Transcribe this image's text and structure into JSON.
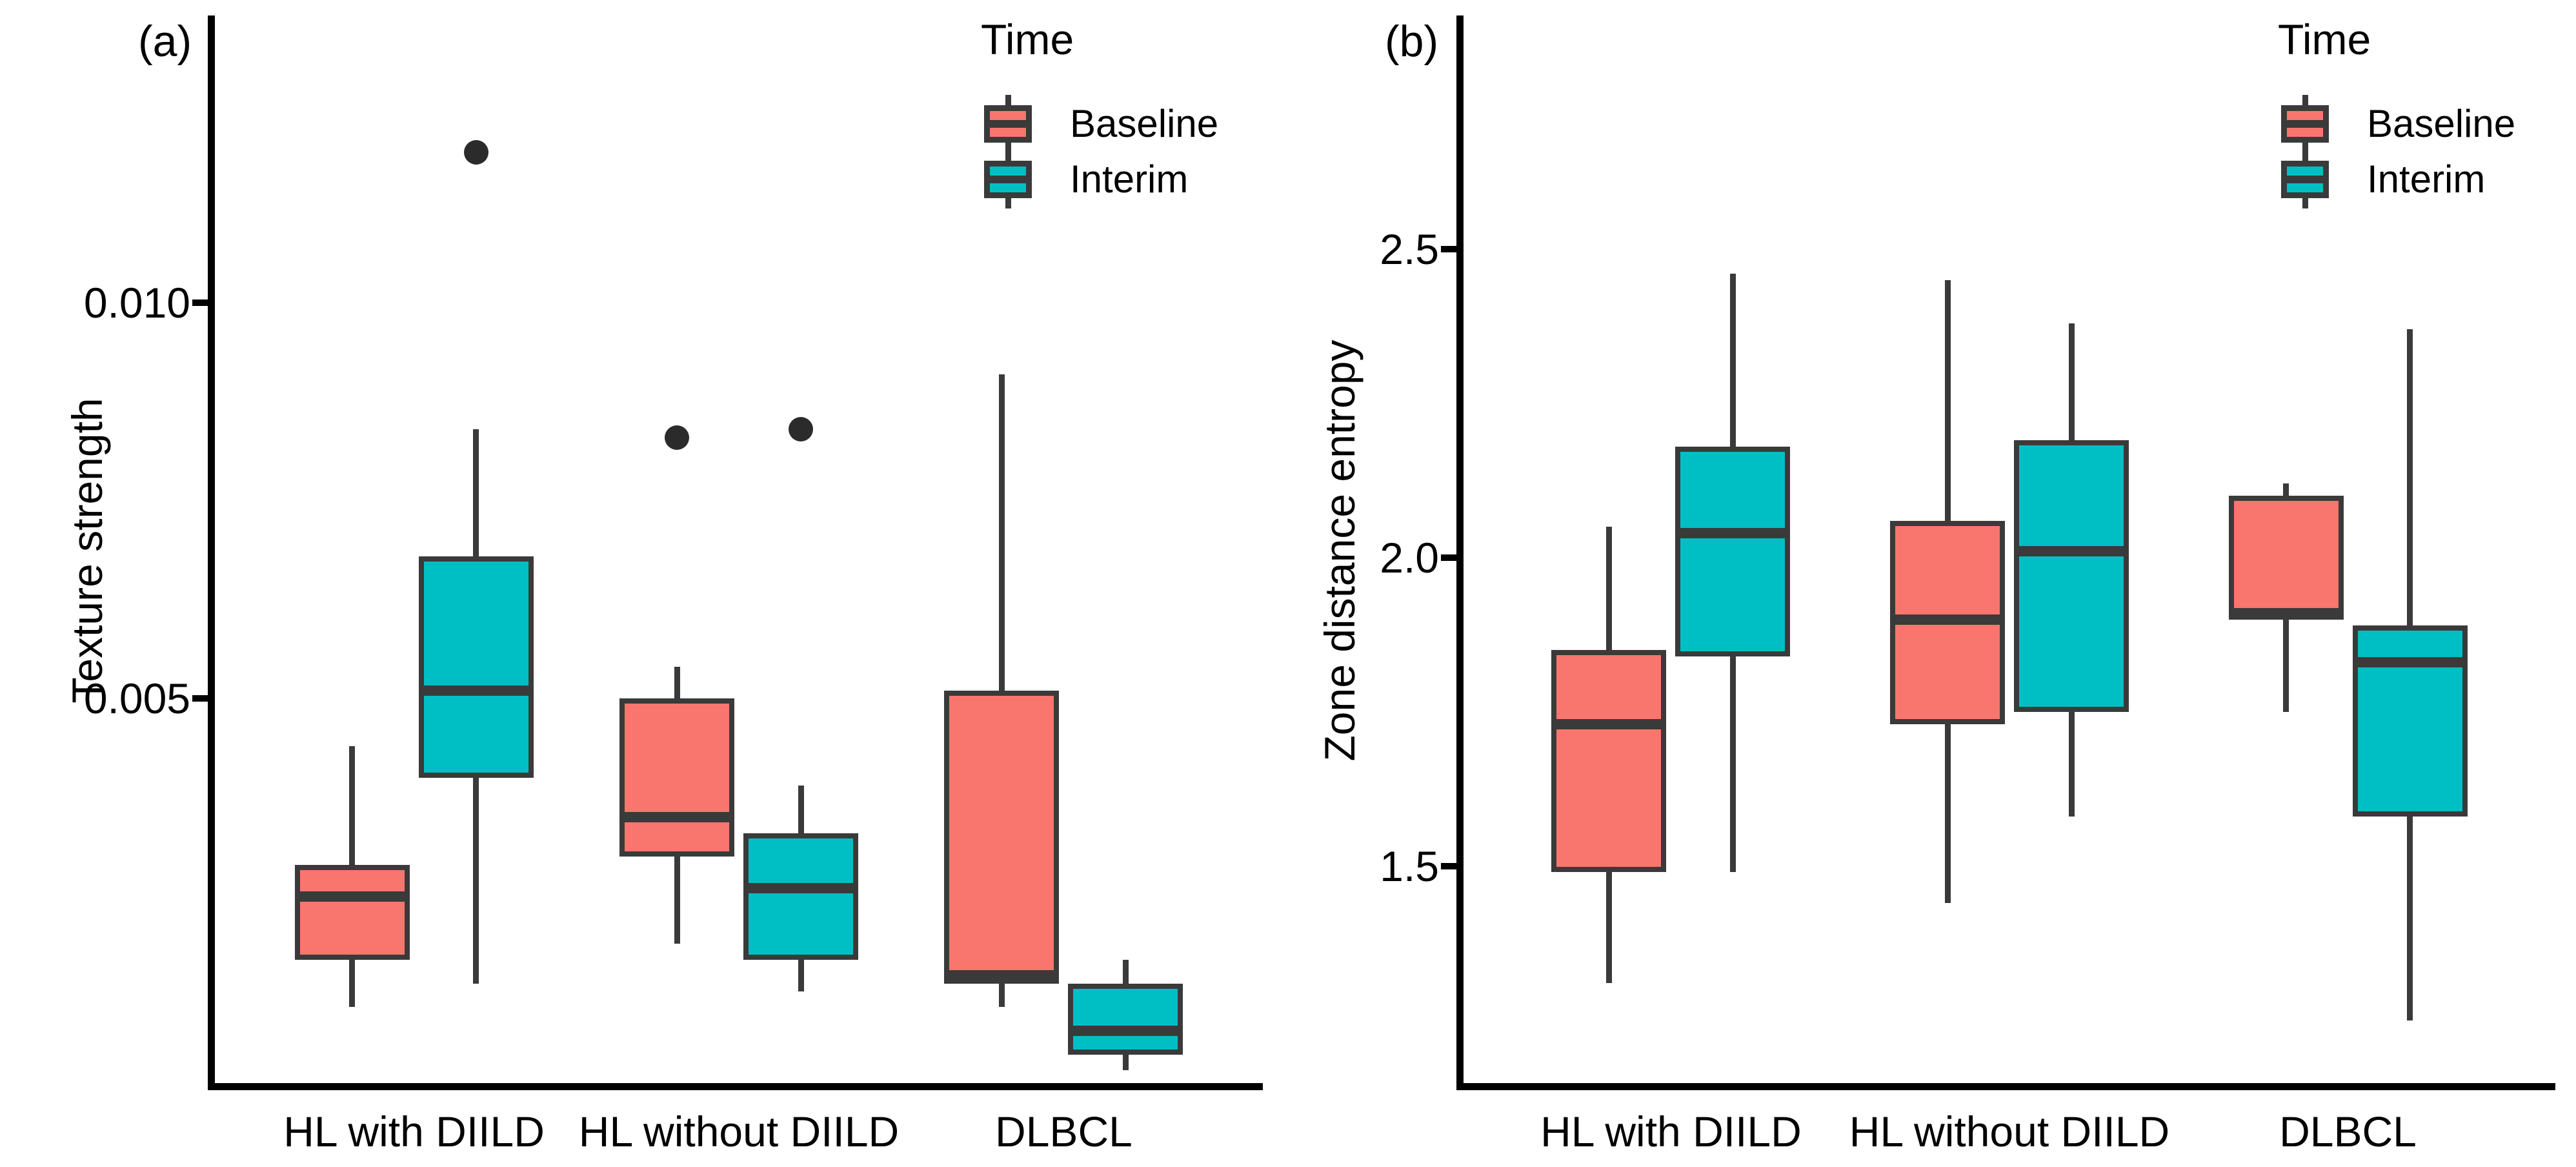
{
  "figure": {
    "background": "#FFFFFF",
    "text_color": "#000000",
    "box_border_color": "#3A3A3A",
    "outlier_color": "#2B2B2B"
  },
  "chart_data": [
    {
      "type": "boxplot",
      "panel_label": "(a)",
      "ylabel": "Texture strength",
      "xlabel": "",
      "categories": [
        "HL with DIILD",
        "HL without DIILD",
        "DLBCL"
      ],
      "yticks": [
        0.005,
        0.01
      ],
      "ytick_labels": [
        "0.005",
        "0.010"
      ],
      "ylim": [
        0.00014,
        0.0136
      ],
      "grid": false,
      "legend": {
        "title": "Time",
        "position": "top-right",
        "entries": [
          "Baseline",
          "Interim"
        ]
      },
      "series": [
        {
          "name": "Baseline",
          "fill": "#F8766D",
          "boxes": [
            {
              "category": "HL with DIILD",
              "whisker_low": 0.0011,
              "q1": 0.0017,
              "median": 0.0025,
              "q3": 0.0029,
              "whisker_high": 0.0044,
              "outliers": []
            },
            {
              "category": "HL without DIILD",
              "whisker_low": 0.0019,
              "q1": 0.003,
              "median": 0.0035,
              "q3": 0.005,
              "whisker_high": 0.0054,
              "outliers": [
                0.0083
              ]
            },
            {
              "category": "DLBCL",
              "whisker_low": 0.0011,
              "q1": 0.0014,
              "median": 0.0015,
              "q3": 0.0051,
              "whisker_high": 0.0091,
              "outliers": []
            }
          ]
        },
        {
          "name": "Interim",
          "fill": "#00BFC4",
          "boxes": [
            {
              "category": "HL with DIILD",
              "whisker_low": 0.0014,
              "q1": 0.004,
              "median": 0.0051,
              "q3": 0.0068,
              "whisker_high": 0.0084,
              "outliers": [
                0.0119
              ]
            },
            {
              "category": "HL without DIILD",
              "whisker_low": 0.0013,
              "q1": 0.0017,
              "median": 0.0026,
              "q3": 0.0033,
              "whisker_high": 0.0039,
              "outliers": [
                0.0084
              ]
            },
            {
              "category": "DLBCL",
              "whisker_low": 0.0003,
              "q1": 0.0005,
              "median": 0.0008,
              "q3": 0.0014,
              "whisker_high": 0.0017,
              "outliers": []
            }
          ]
        }
      ]
    },
    {
      "type": "boxplot",
      "panel_label": "(b)",
      "ylabel": "Zone distance entropy",
      "xlabel": "",
      "categories": [
        "HL with DIILD",
        "HL without DIILD",
        "DLBCL"
      ],
      "yticks": [
        1.5,
        2.0,
        2.5
      ],
      "ytick_labels": [
        "1.5",
        "2.0",
        "2.5"
      ],
      "ylim": [
        1.148,
        2.875
      ],
      "grid": false,
      "legend": {
        "title": "Time",
        "position": "top-right",
        "entries": [
          "Baseline",
          "Interim"
        ]
      },
      "series": [
        {
          "name": "Baseline",
          "fill": "#F8766D",
          "boxes": [
            {
              "category": "HL with DIILD",
              "whisker_low": 1.31,
              "q1": 1.49,
              "median": 1.73,
              "q3": 1.85,
              "whisker_high": 2.05,
              "outliers": []
            },
            {
              "category": "HL without DIILD",
              "whisker_low": 1.44,
              "q1": 1.73,
              "median": 1.9,
              "q3": 2.06,
              "whisker_high": 2.45,
              "outliers": []
            },
            {
              "category": "DLBCL",
              "whisker_low": 1.75,
              "q1": 1.9,
              "median": 1.91,
              "q3": 2.1,
              "whisker_high": 2.12,
              "outliers": []
            }
          ]
        },
        {
          "name": "Interim",
          "fill": "#00BFC4",
          "boxes": [
            {
              "category": "HL with DIILD",
              "whisker_low": 1.49,
              "q1": 1.84,
              "median": 2.04,
              "q3": 2.18,
              "whisker_high": 2.46,
              "outliers": []
            },
            {
              "category": "HL without DIILD",
              "whisker_low": 1.58,
              "q1": 1.75,
              "median": 2.01,
              "q3": 2.19,
              "whisker_high": 2.38,
              "outliers": []
            },
            {
              "category": "DLBCL",
              "whisker_low": 1.25,
              "q1": 1.58,
              "median": 1.83,
              "q3": 1.89,
              "whisker_high": 2.37,
              "outliers": []
            }
          ]
        }
      ]
    }
  ]
}
